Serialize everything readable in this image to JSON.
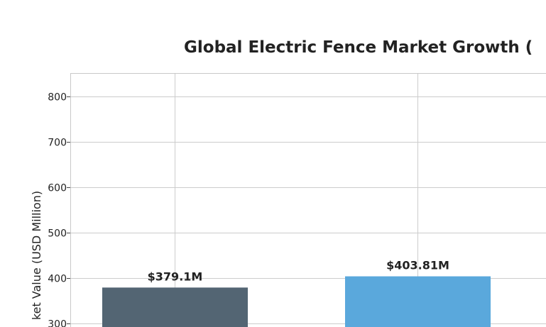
{
  "chart_data": {
    "type": "bar",
    "title": "Global Electric Fence Market Growth (",
    "ylabel": "ket Value (USD Million)",
    "xlabel": "",
    "categories": [
      "",
      ""
    ],
    "values": [
      379.1,
      403.81
    ],
    "data_labels": [
      "$379.1M",
      "$403.81M"
    ],
    "colors": [
      "#536573",
      "#5aa8dc"
    ],
    "ylim": [
      290,
      850
    ],
    "yticks": [
      300,
      400,
      500,
      600,
      700,
      800
    ],
    "ytick_labels": [
      "300",
      "400",
      "500",
      "600",
      "700",
      "800"
    ],
    "grid": true
  }
}
